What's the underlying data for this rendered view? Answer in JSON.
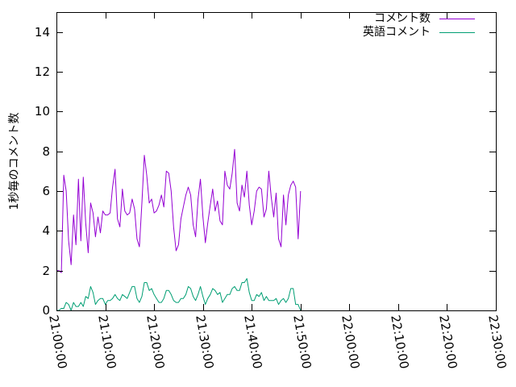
{
  "chart_data": {
    "type": "line",
    "title": "",
    "xlabel": "",
    "ylabel": "1秒毎のコメント数",
    "ylim": [
      0,
      15
    ],
    "x_start": "21:00:00",
    "x_step_seconds": 30,
    "y_ticks": [
      0,
      2,
      4,
      6,
      8,
      10,
      12,
      14
    ],
    "x_ticks": [
      {
        "label": "21:00:00",
        "seconds": 0
      },
      {
        "label": "21:10:00",
        "seconds": 600
      },
      {
        "label": "21:20:00",
        "seconds": 1200
      },
      {
        "label": "21:30:00",
        "seconds": 1800
      },
      {
        "label": "21:40:00",
        "seconds": 2400
      },
      {
        "label": "21:50:00",
        "seconds": 3000
      },
      {
        "label": "22:00:00",
        "seconds": 3600
      },
      {
        "label": "22:10:00",
        "seconds": 4200
      },
      {
        "label": "22:20:00",
        "seconds": 4800
      },
      {
        "label": "22:30:00",
        "seconds": 5400
      }
    ],
    "legend_position": "top-right",
    "grid": false,
    "series": [
      {
        "name": "コメント数",
        "color": "#9400d3",
        "values": [
          2.0,
          2.0,
          1.9,
          6.8,
          6.0,
          3.5,
          2.3,
          4.8,
          3.3,
          6.6,
          3.5,
          6.7,
          4.4,
          2.9,
          5.4,
          4.9,
          3.7,
          4.7,
          3.9,
          5.0,
          4.8,
          4.8,
          4.9,
          6.2,
          7.1,
          4.6,
          4.2,
          6.1,
          5.0,
          4.8,
          4.9,
          5.6,
          5.1,
          3.6,
          3.2,
          5.4,
          7.8,
          6.8,
          5.4,
          5.6,
          4.9,
          5.0,
          5.3,
          5.8,
          5.2,
          7.0,
          6.9,
          6.0,
          4.2,
          3.0,
          3.3,
          4.6,
          5.2,
          5.8,
          6.2,
          5.8,
          4.3,
          3.7,
          5.6,
          6.6,
          4.7,
          3.4,
          4.4,
          5.3,
          6.1,
          5.0,
          5.5,
          4.5,
          4.3,
          7.0,
          6.3,
          6.1,
          6.9,
          8.1,
          5.4,
          5.0,
          6.3,
          5.7,
          7.0,
          5.3,
          4.3,
          5.0,
          6.0,
          6.2,
          6.1,
          4.7,
          5.1,
          7.0,
          5.7,
          4.7,
          5.9,
          3.6,
          3.2,
          5.8,
          4.3,
          5.8,
          6.3,
          6.5,
          6.2,
          3.6,
          6.0
        ]
      },
      {
        "name": "英語コメント",
        "color": "#009e73",
        "values": [
          0.0,
          0.0,
          0.1,
          0.1,
          0.4,
          0.3,
          0.0,
          0.4,
          0.2,
          0.2,
          0.4,
          0.2,
          0.7,
          0.6,
          1.2,
          0.9,
          0.3,
          0.5,
          0.6,
          0.6,
          0.3,
          0.5,
          0.5,
          0.6,
          0.8,
          0.6,
          0.5,
          0.8,
          0.7,
          0.6,
          0.9,
          1.2,
          1.2,
          0.6,
          0.4,
          0.7,
          1.4,
          1.4,
          1.0,
          1.1,
          0.8,
          0.6,
          0.4,
          0.4,
          0.6,
          1.0,
          1.0,
          0.8,
          0.5,
          0.4,
          0.4,
          0.6,
          0.6,
          0.8,
          1.2,
          1.1,
          0.7,
          0.5,
          0.8,
          1.2,
          0.7,
          0.3,
          0.6,
          0.8,
          1.1,
          1.0,
          0.8,
          0.9,
          0.4,
          0.6,
          0.8,
          0.8,
          1.1,
          1.2,
          1.0,
          1.0,
          1.4,
          1.4,
          1.6,
          0.9,
          0.5,
          0.5,
          0.8,
          0.7,
          0.9,
          0.5,
          0.7,
          0.5,
          0.5,
          0.5,
          0.6,
          0.3,
          0.5,
          0.6,
          0.4,
          0.6,
          1.1,
          1.1,
          0.3,
          0.3,
          0.0
        ]
      }
    ]
  }
}
